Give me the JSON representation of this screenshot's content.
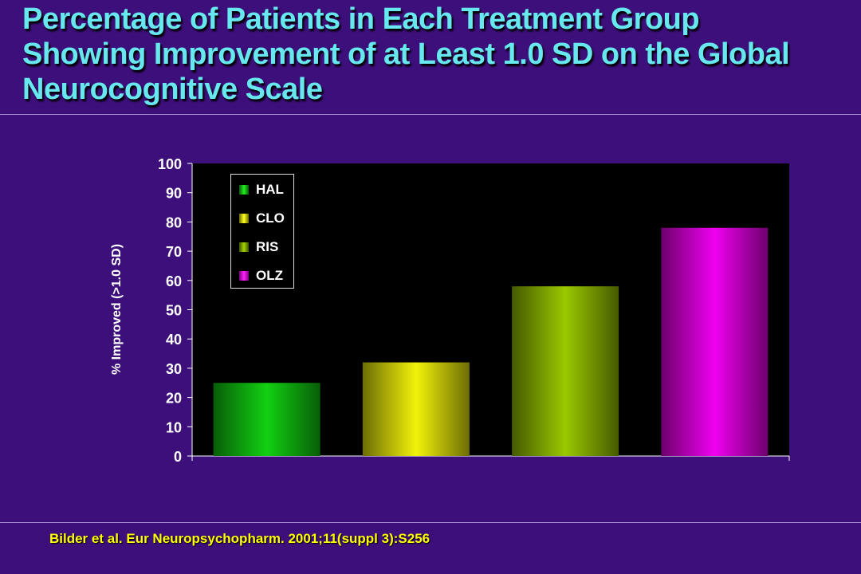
{
  "slide": {
    "title_lines": [
      "Percentage of Patients in Each Treatment Group",
      "Showing Improvement of at Least 1.0 SD on the Global",
      "Neurocognitive Scale"
    ],
    "citation": "Bilder et al. Eur Neuropsychopharm. 2001;11(suppl 3):S256"
  },
  "chart_data": {
    "type": "bar",
    "title": "",
    "xlabel": "",
    "ylabel": "% Improved (>1.0 SD)",
    "ylim": [
      0,
      100
    ],
    "yticks": [
      0,
      10,
      20,
      30,
      40,
      50,
      60,
      70,
      80,
      90,
      100
    ],
    "grid": false,
    "legend_position": "top-left",
    "series": [
      {
        "name": "HAL",
        "values": [
          25
        ],
        "color": "#12d012"
      },
      {
        "name": "CLO",
        "values": [
          32
        ],
        "color": "#f2f20a"
      },
      {
        "name": "RIS",
        "values": [
          58
        ],
        "color": "#9ac800"
      },
      {
        "name": "OLZ",
        "values": [
          78
        ],
        "color": "#f000f0"
      }
    ]
  }
}
